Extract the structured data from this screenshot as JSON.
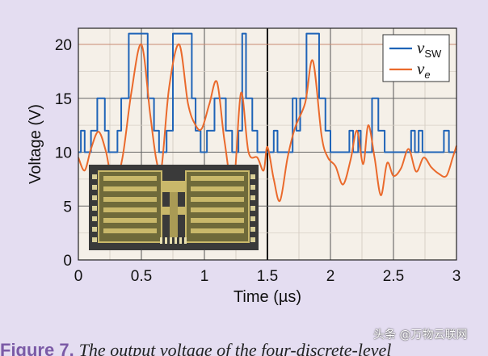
{
  "caption": {
    "figure_label": "Figure 7.",
    "text": "The output voltage of the four-discrete-level"
  },
  "watermark": "头条 @万物云联网",
  "colors": {
    "background": "#e4ddf1",
    "plot_bg": "#f5f0e8",
    "v_sw": "#1f64b8",
    "v_e": "#ea6a2c",
    "inset_bg": "#3a3a3a",
    "inset_metal": "#c9b86a"
  },
  "chart_data": {
    "type": "line",
    "title": "",
    "xlabel": "Time (µs)",
    "ylabel": "Voltage (V)",
    "xlim": [
      0,
      3
    ],
    "ylim": [
      0,
      21.5
    ],
    "x_ticks": [
      "0",
      "0.5",
      "1",
      "1.5",
      "2",
      "2.5",
      "3"
    ],
    "y_ticks": [
      "0",
      "5",
      "10",
      "15",
      "20"
    ],
    "grid": true,
    "legend": "top-right",
    "series": [
      {
        "name": "v_sw",
        "label_main": "v",
        "label_sub": "SW",
        "color": "#1f64b8",
        "steps": [
          [
            0.0,
            10
          ],
          [
            0.02,
            12
          ],
          [
            0.05,
            10
          ],
          [
            0.1,
            12
          ],
          [
            0.15,
            15
          ],
          [
            0.21,
            12
          ],
          [
            0.24,
            10
          ],
          [
            0.31,
            12
          ],
          [
            0.34,
            15
          ],
          [
            0.4,
            21
          ],
          [
            0.55,
            15
          ],
          [
            0.6,
            12
          ],
          [
            0.64,
            10
          ],
          [
            0.7,
            12
          ],
          [
            0.75,
            21
          ],
          [
            0.9,
            15
          ],
          [
            0.93,
            12
          ],
          [
            0.97,
            10
          ],
          [
            1.02,
            12
          ],
          [
            1.08,
            15
          ],
          [
            1.17,
            12
          ],
          [
            1.22,
            10
          ],
          [
            1.27,
            12
          ],
          [
            1.3,
            21
          ],
          [
            1.33,
            15
          ],
          [
            1.38,
            12
          ],
          [
            1.42,
            10
          ],
          [
            1.5,
            10
          ],
          [
            1.55,
            12
          ],
          [
            1.58,
            10
          ],
          [
            1.7,
            15
          ],
          [
            1.73,
            12
          ],
          [
            1.76,
            15
          ],
          [
            1.81,
            21
          ],
          [
            1.91,
            15
          ],
          [
            1.96,
            12
          ],
          [
            2.0,
            10
          ],
          [
            2.15,
            12
          ],
          [
            2.18,
            10
          ],
          [
            2.22,
            12
          ],
          [
            2.24,
            10
          ],
          [
            2.33,
            15
          ],
          [
            2.38,
            12
          ],
          [
            2.43,
            10
          ],
          [
            2.64,
            12
          ],
          [
            2.67,
            10
          ],
          [
            2.7,
            12
          ],
          [
            2.73,
            10
          ],
          [
            2.9,
            12
          ],
          [
            2.94,
            10
          ],
          [
            3.0,
            10
          ]
        ]
      },
      {
        "name": "v_e",
        "label_main": "v",
        "label_sub": "e",
        "color": "#ea6a2c",
        "x": [
          0.0,
          0.05,
          0.1,
          0.16,
          0.22,
          0.28,
          0.35,
          0.42,
          0.5,
          0.57,
          0.62,
          0.66,
          0.72,
          0.8,
          0.87,
          0.93,
          0.98,
          1.04,
          1.1,
          1.16,
          1.23,
          1.29,
          1.35,
          1.42,
          1.47,
          1.5,
          1.55,
          1.6,
          1.66,
          1.72,
          1.8,
          1.86,
          1.93,
          1.98,
          2.04,
          2.1,
          2.16,
          2.21,
          2.26,
          2.3,
          2.35,
          2.4,
          2.45,
          2.5,
          2.56,
          2.62,
          2.68,
          2.74,
          2.8,
          2.86,
          2.92,
          2.97,
          3.0
        ],
        "values": [
          9.5,
          8.3,
          10.3,
          11.9,
          10.0,
          6.8,
          9.5,
          15.5,
          20.0,
          13.5,
          9.2,
          8.6,
          16.0,
          20.0,
          14.5,
          12.5,
          12.2,
          14.5,
          16.5,
          11.0,
          6.8,
          15.5,
          10.0,
          9.5,
          8.3,
          10.5,
          7.5,
          5.5,
          9.5,
          12.3,
          14.6,
          18.5,
          11.5,
          9.5,
          8.7,
          7.0,
          9.3,
          12.0,
          8.9,
          12.5,
          9.5,
          6.0,
          9.0,
          7.8,
          8.5,
          10.3,
          8.2,
          9.5,
          8.6,
          8.0,
          7.8,
          9.5,
          10.6
        ]
      }
    ],
    "inset": "photograph of the switching chip"
  }
}
